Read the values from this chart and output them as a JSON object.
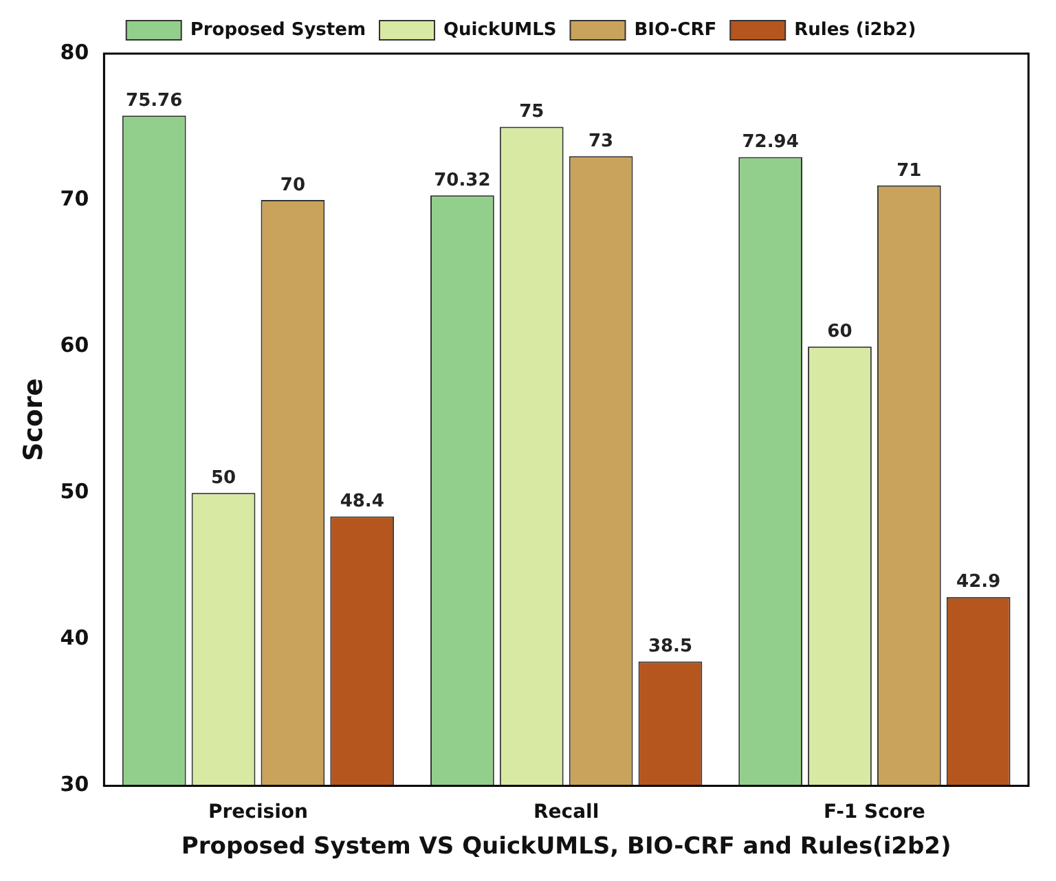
{
  "chart_data": {
    "type": "bar",
    "xlabel": "Proposed System VS QuickUMLS, BIO-CRF and Rules(i2b2)",
    "ylabel": "Score",
    "categories": [
      "Precision",
      "Recall",
      "F-1 Score"
    ],
    "series": [
      {
        "name": "Proposed System",
        "color": "#93cf8c",
        "values": [
          75.76,
          70.32,
          72.94
        ]
      },
      {
        "name": "QuickUMLS",
        "color": "#d8e9a4",
        "values": [
          50,
          75,
          60
        ]
      },
      {
        "name": "BIO-CRF",
        "color": "#c9a35c",
        "values": [
          70,
          73,
          71
        ]
      },
      {
        "name": "Rules (i2b2)",
        "color": "#b5561f",
        "values": [
          48.4,
          38.5,
          42.9
        ]
      }
    ],
    "ylim": [
      30,
      80
    ],
    "yticks": [
      30,
      40,
      50,
      60,
      70,
      80
    ],
    "grid": false,
    "legend": "top",
    "data_labels": true
  }
}
